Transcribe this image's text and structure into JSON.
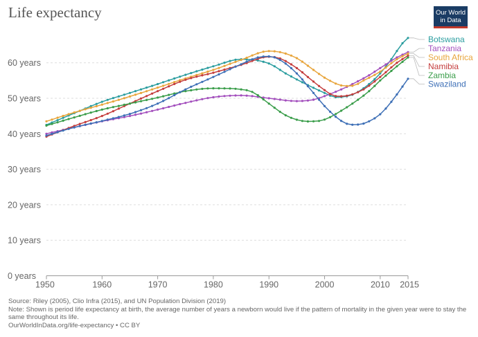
{
  "title": "Life expectancy",
  "logo": {
    "line1": "Our World",
    "line2": "in Data"
  },
  "footer": {
    "source": "Source: Riley (2005), Clio Infra (2015), and UN Population Division (2019)",
    "note": "Note: Shown is period life expectancy at birth, the average number of years a newborn would live if the pattern of mortality in the given year were to stay the same throughout its life.",
    "url": "OurWorldInData.org/life-expectancy • CC BY"
  },
  "chart_data": {
    "type": "line",
    "title": "Life expectancy",
    "xlabel": "",
    "ylabel": "",
    "xlim": [
      1950,
      2015
    ],
    "ylim": [
      0,
      70
    ],
    "x_ticks": [
      1950,
      1960,
      1970,
      1980,
      1990,
      2000,
      2010,
      2015
    ],
    "y_ticks": [
      0,
      10,
      20,
      30,
      40,
      50,
      60
    ],
    "y_tick_labels": [
      "0 years",
      "10 years",
      "20 years",
      "30 years",
      "40 years",
      "50 years",
      "60 years"
    ],
    "grid": true,
    "legend_position": "right",
    "series": [
      {
        "name": "Botswana",
        "color": "#2a9d9f",
        "points": [
          [
            1950,
            42.5
          ],
          [
            1955,
            45.8
          ],
          [
            1960,
            49
          ],
          [
            1965,
            51.5
          ],
          [
            1970,
            54
          ],
          [
            1975,
            56.6
          ],
          [
            1980,
            59
          ],
          [
            1985,
            61
          ],
          [
            1990,
            59.8
          ],
          [
            1993,
            57
          ],
          [
            1996,
            54.5
          ],
          [
            2000,
            51.5
          ],
          [
            2002,
            50.3
          ],
          [
            2005,
            51
          ],
          [
            2008,
            54
          ],
          [
            2010,
            57
          ],
          [
            2012,
            61
          ],
          [
            2014,
            65.5
          ],
          [
            2015,
            67
          ]
        ]
      },
      {
        "name": "Tanzania",
        "color": "#a34fbd",
        "points": [
          [
            1950,
            40
          ],
          [
            1955,
            41.8
          ],
          [
            1960,
            43.5
          ],
          [
            1965,
            45
          ],
          [
            1970,
            46.8
          ],
          [
            1975,
            48.7
          ],
          [
            1980,
            50.3
          ],
          [
            1985,
            50.8
          ],
          [
            1990,
            50
          ],
          [
            1995,
            49.2
          ],
          [
            1998,
            49.6
          ],
          [
            2000,
            50.6
          ],
          [
            2003,
            52.5
          ],
          [
            2005,
            54
          ],
          [
            2008,
            56.5
          ],
          [
            2010,
            58.5
          ],
          [
            2013,
            61.5
          ],
          [
            2015,
            63
          ]
        ]
      },
      {
        "name": "South Africa",
        "color": "#e8a53c",
        "points": [
          [
            1950,
            43.5
          ],
          [
            1955,
            46
          ],
          [
            1960,
            48.2
          ],
          [
            1965,
            50.5
          ],
          [
            1970,
            53
          ],
          [
            1975,
            55.6
          ],
          [
            1980,
            58
          ],
          [
            1985,
            60.8
          ],
          [
            1990,
            63.3
          ],
          [
            1992,
            63
          ],
          [
            1995,
            61.3
          ],
          [
            1998,
            58
          ],
          [
            2000,
            55.8
          ],
          [
            2003,
            53.6
          ],
          [
            2005,
            53.5
          ],
          [
            2007,
            55
          ],
          [
            2010,
            57.5
          ],
          [
            2013,
            61
          ],
          [
            2015,
            62.6
          ]
        ]
      },
      {
        "name": "Namibia",
        "color": "#c43c3c",
        "points": [
          [
            1950,
            39.2
          ],
          [
            1955,
            42.2
          ],
          [
            1960,
            45
          ],
          [
            1965,
            48.5
          ],
          [
            1970,
            52
          ],
          [
            1975,
            55.2
          ],
          [
            1980,
            57.2
          ],
          [
            1985,
            59.4
          ],
          [
            1990,
            61.7
          ],
          [
            1992,
            61.2
          ],
          [
            1995,
            58.5
          ],
          [
            1998,
            54.7
          ],
          [
            2000,
            52.3
          ],
          [
            2002,
            50.6
          ],
          [
            2004,
            50.7
          ],
          [
            2007,
            52.5
          ],
          [
            2010,
            56
          ],
          [
            2013,
            60
          ],
          [
            2015,
            62
          ]
        ]
      },
      {
        "name": "Zambia",
        "color": "#3a9d4a",
        "points": [
          [
            1950,
            42.3
          ],
          [
            1955,
            44.6
          ],
          [
            1960,
            46.8
          ],
          [
            1965,
            48.5
          ],
          [
            1970,
            50.2
          ],
          [
            1975,
            52
          ],
          [
            1980,
            52.8
          ],
          [
            1985,
            52.5
          ],
          [
            1987,
            51.8
          ],
          [
            1990,
            48.5
          ],
          [
            1993,
            45.2
          ],
          [
            1996,
            43.6
          ],
          [
            1998,
            43.5
          ],
          [
            2000,
            44
          ],
          [
            2003,
            46.5
          ],
          [
            2005,
            48.5
          ],
          [
            2008,
            52
          ],
          [
            2010,
            55
          ],
          [
            2013,
            59
          ],
          [
            2015,
            61.5
          ]
        ]
      },
      {
        "name": "Swaziland",
        "color": "#3d6fb6",
        "points": [
          [
            1950,
            39.5
          ],
          [
            1955,
            41.8
          ],
          [
            1960,
            43.6
          ],
          [
            1965,
            45.6
          ],
          [
            1970,
            48.5
          ],
          [
            1975,
            52.5
          ],
          [
            1980,
            56
          ],
          [
            1985,
            59.6
          ],
          [
            1988,
            61.5
          ],
          [
            1990,
            61.8
          ],
          [
            1992,
            60.8
          ],
          [
            1995,
            57
          ],
          [
            1998,
            51.5
          ],
          [
            2000,
            47.8
          ],
          [
            2002,
            44.8
          ],
          [
            2004,
            42.8
          ],
          [
            2006,
            42.6
          ],
          [
            2008,
            43.5
          ],
          [
            2010,
            45.5
          ],
          [
            2012,
            49
          ],
          [
            2015,
            55.5
          ]
        ]
      }
    ]
  }
}
